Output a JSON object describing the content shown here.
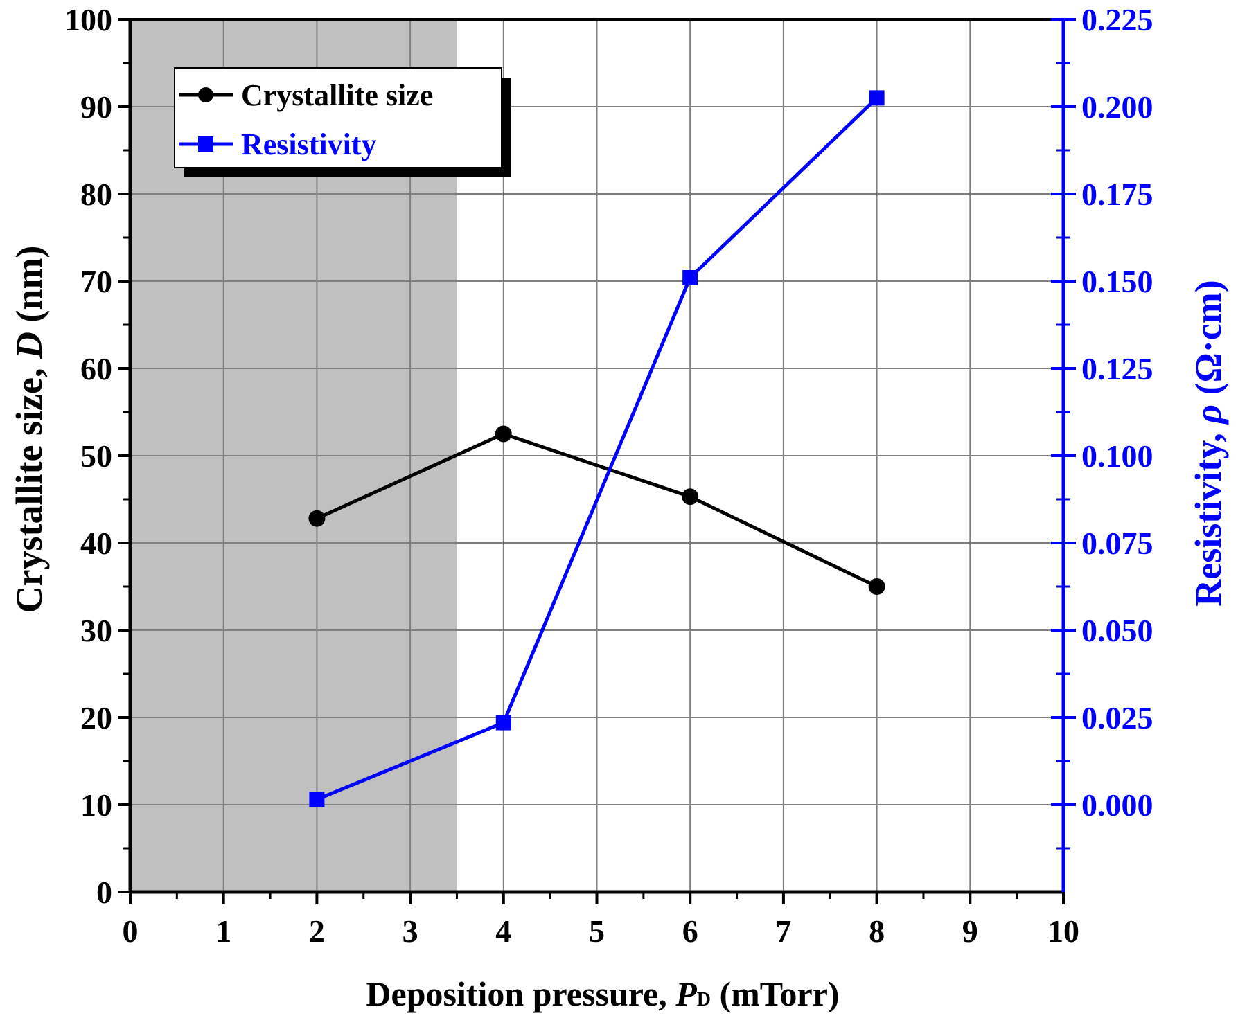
{
  "chart_data": {
    "type": "line",
    "x_axis": {
      "label_prefix": "Deposition pressure, ",
      "label_symbol": "P",
      "label_subscript": "D",
      "label_suffix": " (mTorr)",
      "range": [
        0,
        10
      ],
      "ticks": [
        "0",
        "1",
        "2",
        "3",
        "4",
        "5",
        "6",
        "7",
        "8",
        "9",
        "10"
      ]
    },
    "y_left": {
      "label_prefix": "Crystallite size, ",
      "label_symbol": "D",
      "label_suffix": " (nm)",
      "range": [
        0,
        100
      ],
      "ticks": [
        "0",
        "10",
        "20",
        "30",
        "40",
        "50",
        "60",
        "70",
        "80",
        "90",
        "100"
      ]
    },
    "y_right": {
      "label_prefix": "Resistivity, ",
      "label_symbol": "ρ",
      "label_suffix": " (Ω·cm)",
      "range": [
        -0.025,
        0.225
      ],
      "ticks": [
        "0.000",
        "0.025",
        "0.050",
        "0.075",
        "0.100",
        "0.125",
        "0.150",
        "0.175",
        "0.200",
        "0.225"
      ]
    },
    "shaded_region": {
      "x_start": 0,
      "x_end": 3.5,
      "color": "#c0c0c0"
    },
    "grid": true,
    "legend_position": "top-left",
    "series": [
      {
        "name": "Crystallite size",
        "axis": "left",
        "marker": "circle",
        "color": "#000000",
        "x": [
          2,
          4,
          6,
          8
        ],
        "values": [
          42.8,
          52.5,
          45.3,
          35.0
        ]
      },
      {
        "name": "Resistivity",
        "axis": "right",
        "marker": "square",
        "color": "#0000ff",
        "x": [
          2,
          4,
          6,
          8
        ],
        "values": [
          0.0015,
          0.0235,
          0.151,
          0.2025
        ]
      }
    ]
  }
}
